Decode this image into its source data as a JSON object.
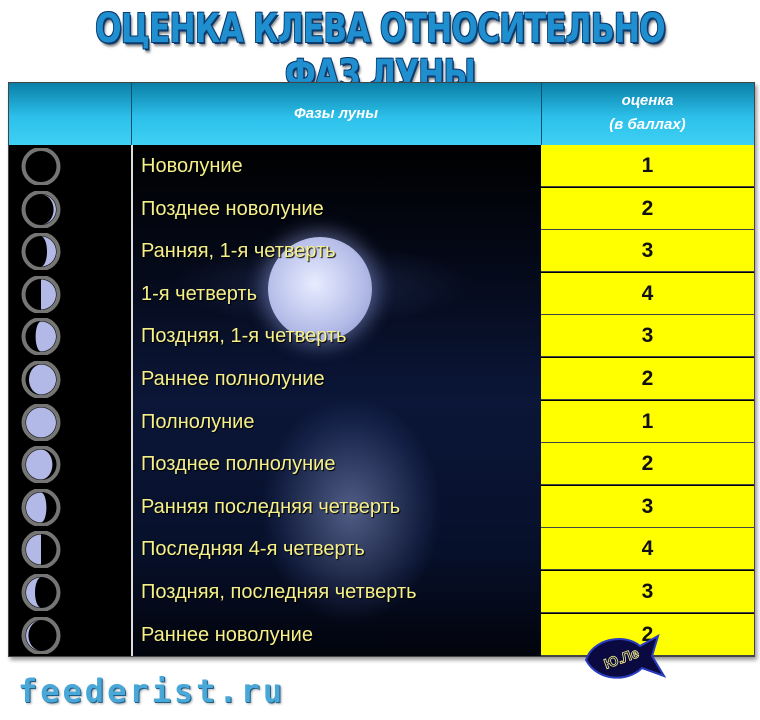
{
  "title": "ОЦЕНКА КЛЕВА ОТНОСИТЕЛЬНО ФАЗ ЛУНЫ",
  "table": {
    "headers": {
      "phase": "Фазы луны",
      "score_line1": "оценка",
      "score_line2": "(в баллах)"
    },
    "rows": [
      {
        "phase": "Новолуние",
        "score": "1",
        "icon": "new-moon-icon",
        "lit": 0,
        "side": "right"
      },
      {
        "phase": "Позднее новолуние",
        "score": "2",
        "icon": "waxing-crescent-icon",
        "lit": 0.08,
        "side": "right"
      },
      {
        "phase": "Ранняя, 1-я четверть",
        "score": "3",
        "icon": "waxing-crescent-icon",
        "lit": 0.3,
        "side": "right"
      },
      {
        "phase": "1-я четверть",
        "score": "4",
        "icon": "first-quarter-icon",
        "lit": 0.5,
        "side": "right"
      },
      {
        "phase": "Поздняя, 1-я четверть",
        "score": "3",
        "icon": "waxing-gibbous-icon",
        "lit": 0.68,
        "side": "right"
      },
      {
        "phase": "Раннее полнолуние",
        "score": "2",
        "icon": "waxing-gibbous-icon",
        "lit": 0.9,
        "side": "right"
      },
      {
        "phase": "Полнолуние",
        "score": "1",
        "icon": "full-moon-icon",
        "lit": 1,
        "side": "right"
      },
      {
        "phase": "Позднее полнолуние",
        "score": "2",
        "icon": "waning-gibbous-icon",
        "lit": 0.88,
        "side": "left"
      },
      {
        "phase": "Ранняя последняя четверть",
        "score": "3",
        "icon": "waning-gibbous-icon",
        "lit": 0.68,
        "side": "left"
      },
      {
        "phase": "Последняя 4-я четверть",
        "score": "4",
        "icon": "last-quarter-icon",
        "lit": 0.5,
        "side": "left"
      },
      {
        "phase": "Поздняя, последняя четверть",
        "score": "3",
        "icon": "waning-crescent-icon",
        "lit": 0.3,
        "side": "left"
      },
      {
        "phase": "Раннее новолуние",
        "score": "2",
        "icon": "waning-crescent-icon",
        "lit": 0.08,
        "side": "left"
      }
    ]
  },
  "logo_text": "Ю.Ле",
  "footer": "feederist.ru",
  "colors": {
    "header": "#2cc0ea",
    "score_bg": "#ffff00",
    "phase_text": "#f6f08a",
    "title": "#1f8fd0",
    "moon_lit": "#b3b9e6"
  }
}
